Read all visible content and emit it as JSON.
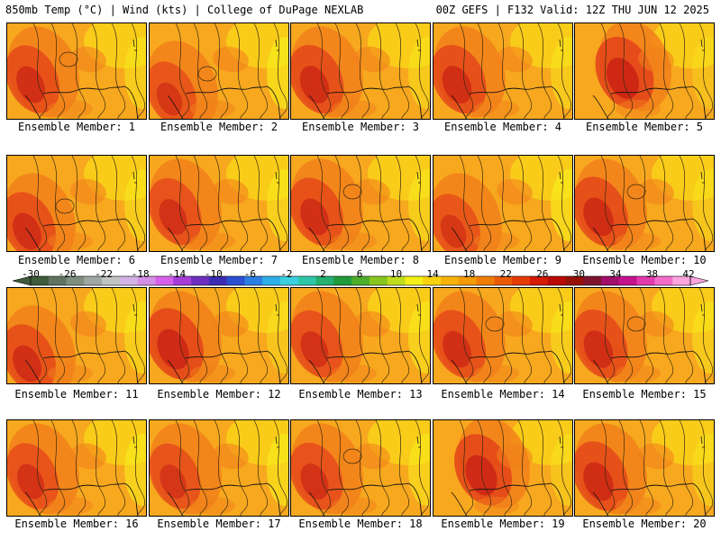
{
  "header": {
    "left": "850mb Temp (°C) | Wind (kts) | College of DuPage NEXLAB",
    "right": "00Z GEFS | F132 Valid: 12Z THU JUN 12 2025"
  },
  "panels": [
    {
      "label": "Ensemble Member: 1",
      "heat_level": 0.55,
      "hot_spot": "west"
    },
    {
      "label": "Ensemble Member: 2",
      "heat_level": 0.35,
      "hot_spot": "southwest"
    },
    {
      "label": "Ensemble Member: 3",
      "heat_level": 0.6,
      "hot_spot": "west"
    },
    {
      "label": "Ensemble Member: 4",
      "heat_level": 0.6,
      "hot_spot": "west"
    },
    {
      "label": "Ensemble Member: 5",
      "heat_level": 0.8,
      "hot_spot": "center"
    },
    {
      "label": "Ensemble Member: 6",
      "heat_level": 0.55,
      "hot_spot": "southwest"
    },
    {
      "label": "Ensemble Member: 7",
      "heat_level": 0.5,
      "hot_spot": "west"
    },
    {
      "label": "Ensemble Member: 8",
      "heat_level": 0.55,
      "hot_spot": "west"
    },
    {
      "label": "Ensemble Member: 9",
      "heat_level": 0.35,
      "hot_spot": "southwest"
    },
    {
      "label": "Ensemble Member: 10",
      "heat_level": 0.65,
      "hot_spot": "west"
    },
    {
      "label": "Ensemble Member: 11",
      "heat_level": 0.55,
      "hot_spot": "southwest"
    },
    {
      "label": "Ensemble Member: 12",
      "heat_level": 0.75,
      "hot_spot": "west"
    },
    {
      "label": "Ensemble Member: 13",
      "heat_level": 0.5,
      "hot_spot": "west"
    },
    {
      "label": "Ensemble Member: 14",
      "heat_level": 0.55,
      "hot_spot": "west"
    },
    {
      "label": "Ensemble Member: 15",
      "heat_level": 0.6,
      "hot_spot": "west"
    },
    {
      "label": "Ensemble Member: 16",
      "heat_level": 0.45,
      "hot_spot": "west"
    },
    {
      "label": "Ensemble Member: 17",
      "heat_level": 0.4,
      "hot_spot": "west"
    },
    {
      "label": "Ensemble Member: 18",
      "heat_level": 0.5,
      "hot_spot": "west"
    },
    {
      "label": "Ensemble Member: 19",
      "heat_level": 0.75,
      "hot_spot": "center"
    },
    {
      "label": "Ensemble Member: 20",
      "heat_level": 0.65,
      "hot_spot": "west"
    }
  ],
  "colorbar": {
    "labels": [
      "-30",
      "-26",
      "-22",
      "-18",
      "-14",
      "-10",
      "-6",
      "-2",
      "2",
      "6",
      "10",
      "14",
      "18",
      "22",
      "26",
      "30",
      "34",
      "38",
      "42"
    ],
    "colors": [
      "#3f5a3a",
      "#5e7461",
      "#7e8f80",
      "#9fa8a2",
      "#c0c4c2",
      "#d2b3e4",
      "#d48fe6",
      "#d760ea",
      "#a63cd7",
      "#6e2fbf",
      "#3d2cb3",
      "#2a4fd0",
      "#2b7fe3",
      "#2eaee9",
      "#3bd0e0",
      "#2dc7a8",
      "#23b070",
      "#1f9a3c",
      "#4cae2a",
      "#86c61f",
      "#c0dc1e",
      "#f3ef17",
      "#f8d20e",
      "#f6b209",
      "#f39a05",
      "#ef7d04",
      "#ea5a05",
      "#e63a06",
      "#d51a06",
      "#b90a05",
      "#961008",
      "#7e1430",
      "#a10e6b",
      "#c5138e",
      "#e23aac",
      "#f56cc8",
      "#fba4de"
    ]
  },
  "palette": {
    "base": "#f7a81e",
    "warm": "#f2801a",
    "hot": "#e2401a",
    "hottest": "#c41a14",
    "cool": "#f9d21a",
    "coolest": "#f7ee1c"
  }
}
